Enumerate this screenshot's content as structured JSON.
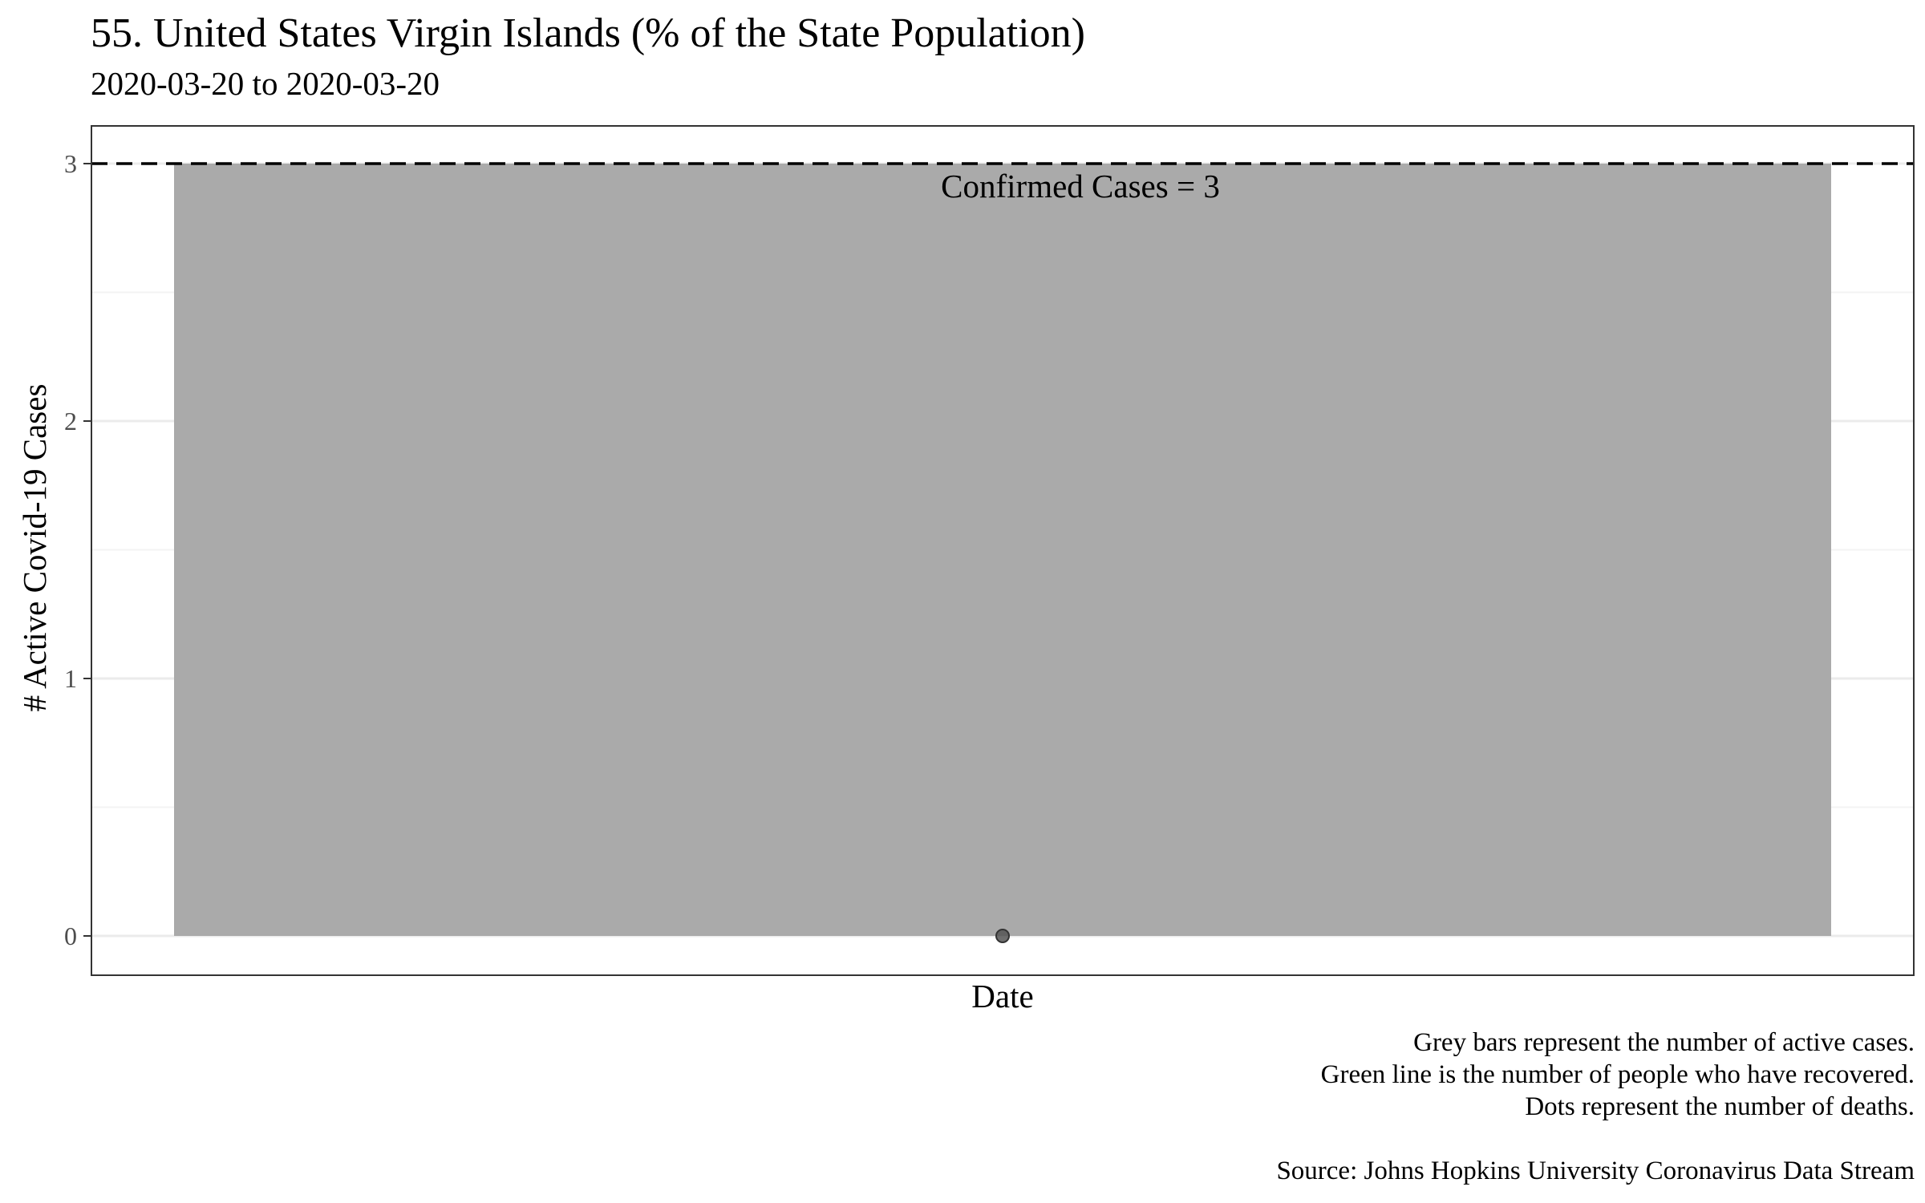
{
  "chart_data": {
    "type": "bar",
    "title": "55. United States Virgin Islands (% of the State Population)",
    "subtitle": "2020-03-20 to 2020-03-20",
    "xlabel": "Date",
    "ylabel": "# Active Covid-19 Cases",
    "ylim": [
      0,
      3
    ],
    "yticks": [
      "0",
      "1",
      "2",
      "3"
    ],
    "grid": true,
    "categories": [
      "2020-03-20"
    ],
    "series": [
      {
        "values": [
          3
        ],
        "color": "#aaaaaa"
      }
    ],
    "deaths": [
      0
    ],
    "deaths_color": "#555555",
    "reference_line": {
      "value": 3,
      "style": "dashed",
      "label": "Confirmed Cases = 3"
    },
    "caption": [
      "Grey bars represent the number of active cases.",
      "Green line is the number of people who have recovered.",
      "Dots represent the number of deaths."
    ],
    "source": "Source: Johns Hopkins University Coronavirus Data Stream"
  }
}
